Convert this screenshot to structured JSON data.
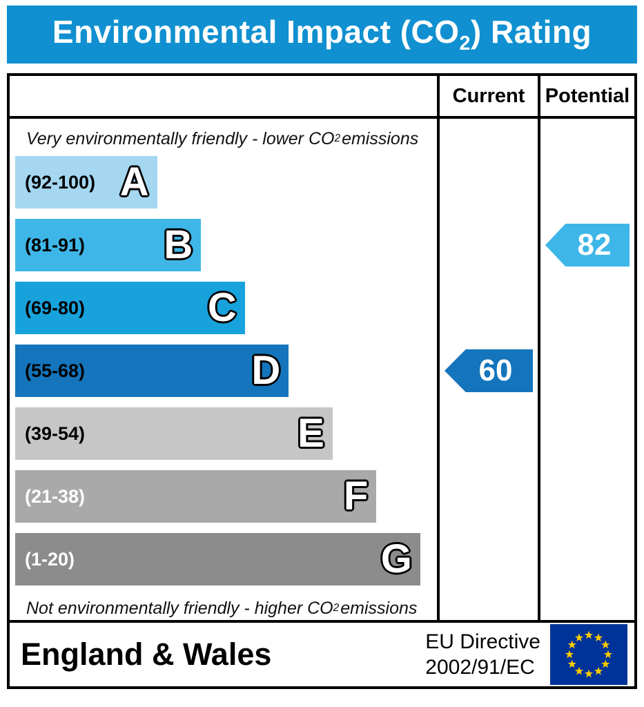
{
  "title": {
    "pre": "Environmental Impact (CO",
    "sub": "2",
    "post": ") Rating"
  },
  "header": {
    "current_label": "Current",
    "potential_label": "Potential"
  },
  "notes": {
    "top": {
      "pre": "Very environmentally friendly - lower CO",
      "sub": "2",
      "post": " emissions"
    },
    "bottom": {
      "pre": "Not environmentally friendly - higher CO",
      "sub": "2",
      "post": " emissions"
    }
  },
  "colors": {
    "title_bar": "#1090d0",
    "eu_flag_field": "#003399",
    "eu_flag_stars": "#ffcc00"
  },
  "chart_data": {
    "type": "bar",
    "title": "Environmental Impact (CO2) Rating",
    "bands": [
      {
        "letter": "A",
        "range": "(92-100)",
        "color": "#a5d7f0",
        "width_pct": 34,
        "text_color": "#000000"
      },
      {
        "letter": "B",
        "range": "(81-91)",
        "color": "#3eb6e8",
        "width_pct": 44.5,
        "text_color": "#000000"
      },
      {
        "letter": "C",
        "range": "(69-80)",
        "color": "#18a2dc",
        "width_pct": 55,
        "text_color": "#000000"
      },
      {
        "letter": "D",
        "range": "(55-68)",
        "color": "#1475bc",
        "width_pct": 65.5,
        "text_color": "#000000"
      },
      {
        "letter": "E",
        "range": "(39-54)",
        "color": "#c6c6c6",
        "width_pct": 76,
        "text_color": "#000000"
      },
      {
        "letter": "F",
        "range": "(21-38)",
        "color": "#a9a9a9",
        "width_pct": 86.5,
        "text_color": "#ffffff"
      },
      {
        "letter": "G",
        "range": "(1-20)",
        "color": "#8c8c8c",
        "width_pct": 97,
        "text_color": "#ffffff"
      }
    ],
    "current": {
      "value": 60,
      "band": "D",
      "color": "#1475bc"
    },
    "potential": {
      "value": 82,
      "band": "B",
      "color": "#3eb6e8"
    }
  },
  "footer": {
    "region": "England & Wales",
    "directive": [
      "EU Directive",
      "2002/91/EC"
    ]
  }
}
